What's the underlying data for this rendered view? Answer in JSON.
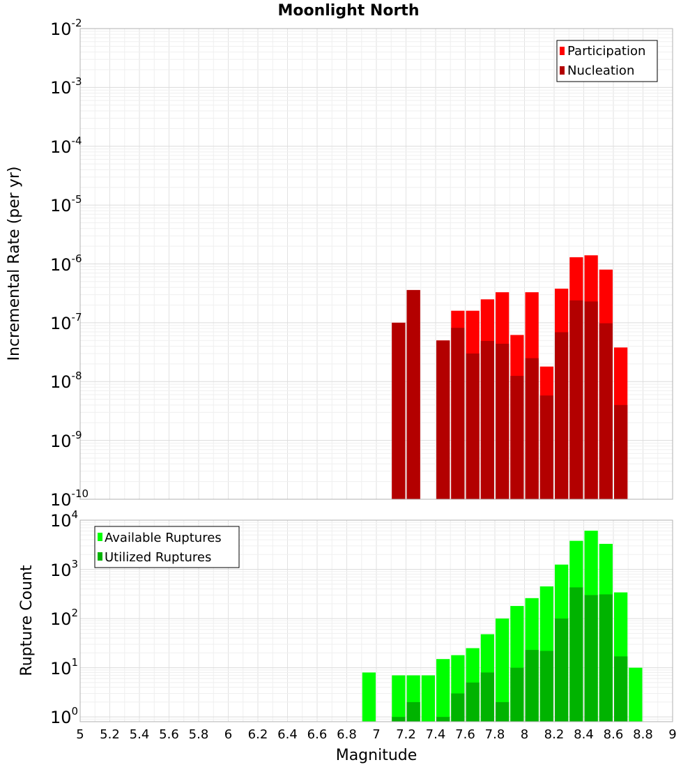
{
  "chart_data": [
    {
      "type": "bar",
      "title": "Moonlight North",
      "xlabel": "",
      "ylabel": "Incremental Rate (per yr)",
      "yscale": "log",
      "ylim": [
        1e-10,
        0.01
      ],
      "xlim": [
        5,
        9
      ],
      "bin_width": 0.1,
      "yticks": [
        {
          "base": "10",
          "exp": "-10",
          "value": 1e-10
        },
        {
          "base": "10",
          "exp": "-9",
          "value": 1e-09
        },
        {
          "base": "10",
          "exp": "-8",
          "value": 1e-08
        },
        {
          "base": "10",
          "exp": "-7",
          "value": 1e-07
        },
        {
          "base": "10",
          "exp": "-6",
          "value": 1e-06
        },
        {
          "base": "10",
          "exp": "-5",
          "value": 1e-05
        },
        {
          "base": "10",
          "exp": "-4",
          "value": 0.0001
        },
        {
          "base": "10",
          "exp": "-3",
          "value": 0.001
        },
        {
          "base": "10",
          "exp": "-2",
          "value": 0.01
        }
      ],
      "legend_position": "top-right",
      "grid": true,
      "series": [
        {
          "name": "Participation",
          "color": "#ff0000",
          "points": [
            {
              "x": 7.15,
              "y": 1e-07
            },
            {
              "x": 7.25,
              "y": 3.6e-07
            },
            {
              "x": 7.45,
              "y": 5e-08
            },
            {
              "x": 7.55,
              "y": 1.6e-07
            },
            {
              "x": 7.65,
              "y": 1.6e-07
            },
            {
              "x": 7.75,
              "y": 2.5e-07
            },
            {
              "x": 7.85,
              "y": 3.3e-07
            },
            {
              "x": 7.95,
              "y": 6.2e-08
            },
            {
              "x": 8.05,
              "y": 3.3e-07
            },
            {
              "x": 8.15,
              "y": 1.8e-08
            },
            {
              "x": 8.25,
              "y": 3.8e-07
            },
            {
              "x": 8.35,
              "y": 1.3e-06
            },
            {
              "x": 8.45,
              "y": 1.4e-06
            },
            {
              "x": 8.55,
              "y": 8e-07
            },
            {
              "x": 8.65,
              "y": 3.8e-08
            }
          ]
        },
        {
          "name": "Nucleation",
          "color": "#b30000",
          "points": [
            {
              "x": 7.15,
              "y": 1e-07
            },
            {
              "x": 7.25,
              "y": 3.6e-07
            },
            {
              "x": 7.45,
              "y": 5e-08
            },
            {
              "x": 7.55,
              "y": 8.2e-08
            },
            {
              "x": 7.65,
              "y": 3e-08
            },
            {
              "x": 7.75,
              "y": 4.9e-08
            },
            {
              "x": 7.85,
              "y": 4.4e-08
            },
            {
              "x": 7.95,
              "y": 1.25e-08
            },
            {
              "x": 8.05,
              "y": 2.5e-08
            },
            {
              "x": 8.15,
              "y": 5.8e-09
            },
            {
              "x": 8.25,
              "y": 6.9e-08
            },
            {
              "x": 8.35,
              "y": 2.4e-07
            },
            {
              "x": 8.45,
              "y": 2.3e-07
            },
            {
              "x": 8.55,
              "y": 9.8e-08
            },
            {
              "x": 8.65,
              "y": 4e-09
            }
          ]
        }
      ]
    },
    {
      "type": "bar",
      "title": "",
      "xlabel": "Magnitude",
      "ylabel": "Rupture Count",
      "yscale": "log",
      "ylim": [
        0.8,
        10000
      ],
      "xlim": [
        5,
        9
      ],
      "bin_width": 0.1,
      "xticks": [
        "5",
        "5.2",
        "5.4",
        "5.6",
        "5.8",
        "6",
        "6.2",
        "6.4",
        "6.6",
        "6.8",
        "7",
        "7.2",
        "7.4",
        "7.6",
        "7.8",
        "8",
        "8.2",
        "8.4",
        "8.6",
        "8.8",
        "9"
      ],
      "yticks": [
        {
          "base": "10",
          "exp": "0",
          "value": 1
        },
        {
          "base": "10",
          "exp": "1",
          "value": 10
        },
        {
          "base": "10",
          "exp": "2",
          "value": 100
        },
        {
          "base": "10",
          "exp": "3",
          "value": 1000
        },
        {
          "base": "10",
          "exp": "4",
          "value": 10000
        }
      ],
      "legend_position": "top-left",
      "grid": true,
      "series": [
        {
          "name": "Available Ruptures",
          "color": "#00ff00",
          "points": [
            {
              "x": 6.95,
              "y": 8
            },
            {
              "x": 7.15,
              "y": 7
            },
            {
              "x": 7.25,
              "y": 7
            },
            {
              "x": 7.35,
              "y": 7
            },
            {
              "x": 7.45,
              "y": 15
            },
            {
              "x": 7.55,
              "y": 18
            },
            {
              "x": 7.65,
              "y": 25
            },
            {
              "x": 7.75,
              "y": 48
            },
            {
              "x": 7.85,
              "y": 100
            },
            {
              "x": 7.95,
              "y": 180
            },
            {
              "x": 8.05,
              "y": 260
            },
            {
              "x": 8.15,
              "y": 450
            },
            {
              "x": 8.25,
              "y": 1250
            },
            {
              "x": 8.35,
              "y": 3800
            },
            {
              "x": 8.45,
              "y": 6100
            },
            {
              "x": 8.55,
              "y": 3300
            },
            {
              "x": 8.65,
              "y": 340
            },
            {
              "x": 8.75,
              "y": 10
            }
          ]
        },
        {
          "name": "Utilized Ruptures",
          "color": "#00b300",
          "points": [
            {
              "x": 7.15,
              "y": 1
            },
            {
              "x": 7.25,
              "y": 2
            },
            {
              "x": 7.45,
              "y": 1
            },
            {
              "x": 7.55,
              "y": 3
            },
            {
              "x": 7.65,
              "y": 5
            },
            {
              "x": 7.75,
              "y": 8
            },
            {
              "x": 7.85,
              "y": 2
            },
            {
              "x": 7.95,
              "y": 10
            },
            {
              "x": 8.05,
              "y": 23
            },
            {
              "x": 8.15,
              "y": 22
            },
            {
              "x": 8.25,
              "y": 100
            },
            {
              "x": 8.35,
              "y": 430
            },
            {
              "x": 8.45,
              "y": 300
            },
            {
              "x": 8.55,
              "y": 310
            },
            {
              "x": 8.65,
              "y": 17
            }
          ]
        }
      ]
    }
  ]
}
